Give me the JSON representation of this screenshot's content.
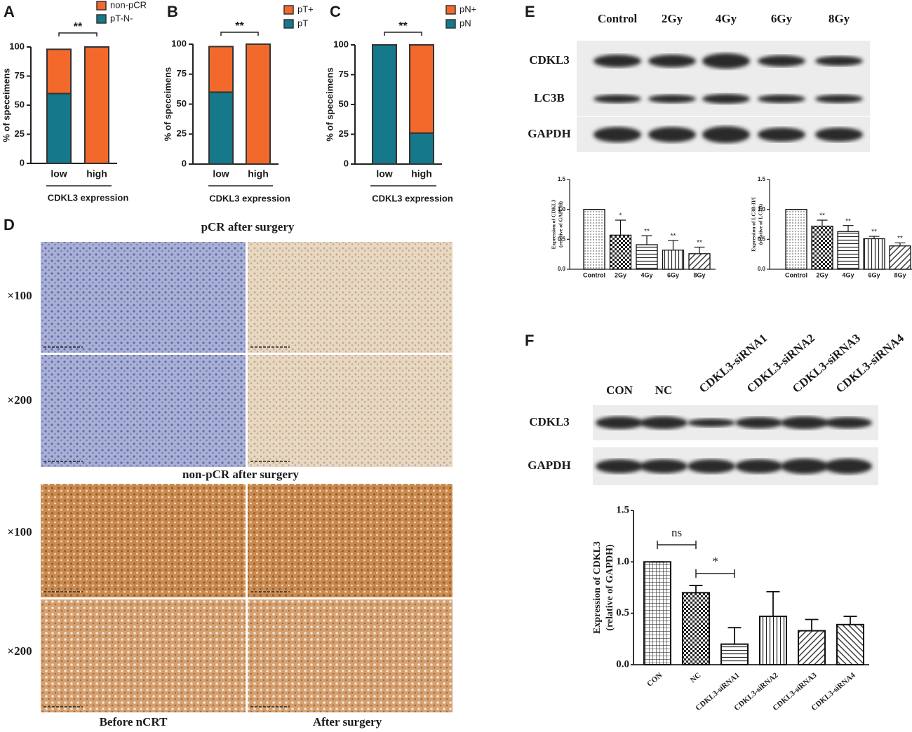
{
  "panel_labels": [
    "A",
    "B",
    "C",
    "D",
    "E",
    "F"
  ],
  "chart_data": [
    {
      "type": "stacked_bar",
      "categories": [
        "low",
        "high"
      ],
      "series": [
        {
          "name": "pT-N-",
          "color": "#15788b",
          "values": [
            60,
            0
          ]
        },
        {
          "name": "non-pCR",
          "color": "#f2692b",
          "values": [
            38,
            100
          ]
        }
      ],
      "ylim": [
        0,
        100
      ],
      "yticks": [
        0,
        25,
        50,
        75,
        100
      ],
      "ylabel": "% of speceimens",
      "xlabel": "CDKL3 expression",
      "brackets": [
        {
          "label": "**",
          "from": "low",
          "to": "high"
        }
      ]
    },
    {
      "type": "stacked_bar",
      "categories": [
        "low",
        "high"
      ],
      "series": [
        {
          "name": "pT",
          "color": "#15788b",
          "values": [
            60,
            0
          ]
        },
        {
          "name": "pT+",
          "color": "#f2692b",
          "values": [
            38,
            100
          ]
        }
      ],
      "ylim": [
        0,
        100
      ],
      "yticks": [
        0,
        25,
        50,
        75,
        100
      ],
      "ylabel": "% of speceimens",
      "xlabel": "CDKL3 expression",
      "brackets": [
        {
          "label": "**",
          "from": "low",
          "to": "high"
        }
      ]
    },
    {
      "type": "stacked_bar",
      "categories": [
        "low",
        "high"
      ],
      "series": [
        {
          "name": "pN",
          "color": "#15788b",
          "values": [
            100,
            26
          ]
        },
        {
          "name": "pN+",
          "color": "#f2692b",
          "values": [
            0,
            74
          ]
        }
      ],
      "ylim": [
        0,
        100
      ],
      "yticks": [
        0,
        25,
        50,
        75,
        100
      ],
      "ylabel": "% of speceimens",
      "xlabel": "CDKL3 expression",
      "brackets": [
        {
          "label": "**",
          "from": "low",
          "to": "high"
        }
      ]
    },
    {
      "type": "bar",
      "categories": [
        "Control",
        "2Gy",
        "4Gy",
        "6Gy",
        "8Gy"
      ],
      "values": [
        1.0,
        0.57,
        0.41,
        0.32,
        0.26
      ],
      "errors": [
        0,
        0.25,
        0.15,
        0.16,
        0.11
      ],
      "value_annotations": [
        null,
        "*",
        "**",
        "**",
        "**"
      ],
      "ylim": [
        0,
        1.5
      ],
      "yticks": [
        {
          "value": 0,
          "label": "0.0"
        },
        0.5,
        {
          "value": 1,
          "label": "1.0"
        },
        1.5
      ],
      "ylabel": [
        "Expression of CDKL3",
        "(relative of GAPDH)"
      ]
    },
    {
      "type": "bar",
      "categories": [
        "Control",
        "2Gy",
        "4Gy",
        "6Gy",
        "8Gy"
      ],
      "values": [
        1.0,
        0.72,
        0.63,
        0.51,
        0.39
      ],
      "errors": [
        0,
        0.1,
        0.1,
        0.04,
        0.05
      ],
      "value_annotations": [
        null,
        "**",
        "**",
        "**",
        "**"
      ],
      "ylim": [
        0,
        1.5
      ],
      "yticks": [
        {
          "value": 0,
          "label": "0.0"
        },
        0.5,
        {
          "value": 1,
          "label": "1.0"
        },
        1.5
      ],
      "ylabel": [
        "Expression of LC3B-II/I",
        "(relative of LC3B)"
      ]
    },
    {
      "type": "bar",
      "categories": [
        "CON",
        "NC",
        "CDKL3-siRNA1",
        "CDKL3-siRNA2",
        "CDKL3-siRNA3",
        "CDKL3-siRNA4"
      ],
      "values": [
        1.0,
        0.7,
        0.2,
        0.47,
        0.33,
        0.39
      ],
      "errors": [
        0,
        0.07,
        0.16,
        0.24,
        0.11,
        0.08
      ],
      "ylim": [
        0,
        1.5
      ],
      "yticks": [
        {
          "value": 0,
          "label": "0.0"
        },
        0.5,
        {
          "value": 1,
          "label": "1.0"
        },
        1.5
      ],
      "ylabel": [
        "Expression of CDKL3",
        "(relative of GAPDH)"
      ],
      "brackets": [
        {
          "label": "ns",
          "from": "CON",
          "to": "NC"
        },
        {
          "label": "*",
          "from": "NC",
          "to": "CDKL3-siRNA1"
        }
      ]
    }
  ],
  "ihc": {
    "title_top": "pCR after surgery",
    "title_bottom": "non-pCR after surgery",
    "magnifications": [
      "×100",
      "×200",
      "×100",
      "×200"
    ],
    "columns": [
      "Before nCRT",
      "After surgery"
    ]
  },
  "blot_e": {
    "lanes": [
      "Control",
      "2Gy",
      "4Gy",
      "6Gy",
      "8Gy"
    ],
    "rows": [
      "CDKL3",
      "LC3B",
      "GAPDH"
    ]
  },
  "blot_f": {
    "lanes": [
      "CON",
      "NC",
      "CDKL3-siRNA1",
      "CDKL3-siRNA2",
      "CDKL3-siRNA3",
      "CDKL3-siRNA4"
    ],
    "rows": [
      "CDKL3",
      "GAPDH"
    ]
  }
}
